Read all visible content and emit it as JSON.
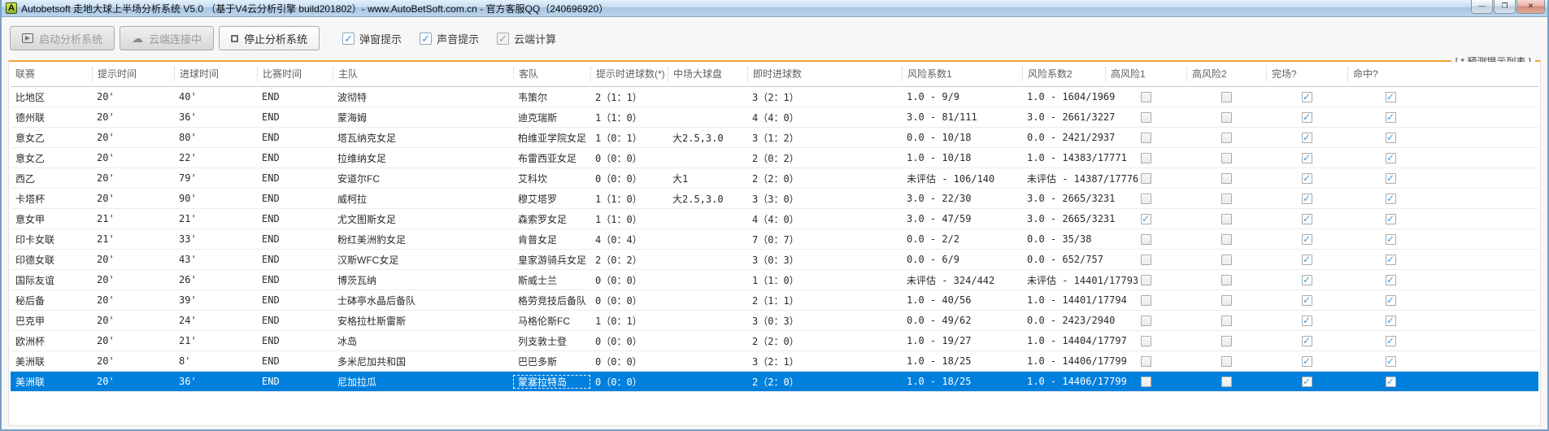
{
  "window": {
    "title": "Autobetsoft 走地大球上半场分析系统 V5.0 （基于V4云分析引擎 build201802）- www.AutoBetSoft.com.cn - 官方客服QQ（240696920）",
    "icon_letter": "A",
    "controls": {
      "minimize": "—",
      "maximize": "❐",
      "close": "✕"
    }
  },
  "toolbar": {
    "start_button": "启动分析系统",
    "cloud_button": "云端连接中",
    "stop_button": "停止分析系统",
    "checkboxes": [
      {
        "label": "弹窗提示",
        "checked": true,
        "enabled": true
      },
      {
        "label": "声音提示",
        "checked": true,
        "enabled": true
      },
      {
        "label": "云端计算",
        "checked": true,
        "enabled": false
      }
    ]
  },
  "panel": {
    "title": "[ * 预测提示列表 ]"
  },
  "colors": {
    "accent_orange": "#eda338",
    "selection_blue": "#0080dd",
    "check_blue": "#4d9bd6"
  },
  "table": {
    "columns": [
      "联赛",
      "提示时间",
      "进球时间",
      "比赛时间",
      "主队",
      "客队",
      "提示时进球数(*)",
      "中场大球盘",
      "即时进球数",
      "风险系数1",
      "风险系数2",
      "高风险1",
      "高风险2",
      "完场?",
      "命中?"
    ],
    "rows": [
      {
        "league": "比地区",
        "hint_time": "20'",
        "goal_time": "40'",
        "match_time": "END",
        "home": "波彻特",
        "away": "韦策尔",
        "hint_score": "2（1：1）",
        "half_line": "",
        "live_score": "3（2：1）",
        "risk1": "1.0 - 9/9",
        "risk2": "1.0 - 1604/1969",
        "high_risk1": false,
        "high_risk2": false,
        "finished": true,
        "hit": true,
        "selected": false
      },
      {
        "league": "德州联",
        "hint_time": "20'",
        "goal_time": "36'",
        "match_time": "END",
        "home": "蒙海姆",
        "away": "迪克瑞斯",
        "hint_score": "1（1：0）",
        "half_line": "",
        "live_score": "4（4：0）",
        "risk1": "3.0 - 81/111",
        "risk2": "3.0 - 2661/3227",
        "high_risk1": false,
        "high_risk2": false,
        "finished": true,
        "hit": true,
        "selected": false
      },
      {
        "league": "意女乙",
        "hint_time": "20'",
        "goal_time": "80'",
        "match_time": "END",
        "home": "塔瓦纳克女足",
        "away": "柏维亚学院女足",
        "hint_score": "1（0：1）",
        "half_line": "大2.5,3.0",
        "live_score": "3（1：2）",
        "risk1": "0.0 - 10/18",
        "risk2": "0.0 - 2421/2937",
        "high_risk1": false,
        "high_risk2": false,
        "finished": true,
        "hit": true,
        "selected": false
      },
      {
        "league": "意女乙",
        "hint_time": "20'",
        "goal_time": "22'",
        "match_time": "END",
        "home": "拉维纳女足",
        "away": "布雷西亚女足",
        "hint_score": "0（0：0）",
        "half_line": "",
        "live_score": "2（0：2）",
        "risk1": "1.0 - 10/18",
        "risk2": "1.0 - 14383/17771",
        "high_risk1": false,
        "high_risk2": false,
        "finished": true,
        "hit": true,
        "selected": false
      },
      {
        "league": "西乙",
        "hint_time": "20'",
        "goal_time": "79'",
        "match_time": "END",
        "home": "安道尔FC",
        "away": "艾科坎",
        "hint_score": "0（0：0）",
        "half_line": "大1",
        "live_score": "2（2：0）",
        "risk1": "未评估 - 106/140",
        "risk2": "未评估 - 14387/17776",
        "high_risk1": false,
        "high_risk2": false,
        "finished": true,
        "hit": true,
        "selected": false
      },
      {
        "league": "卡塔杯",
        "hint_time": "20'",
        "goal_time": "90'",
        "match_time": "END",
        "home": "威柯拉",
        "away": "穆艾塔罗",
        "hint_score": "1（1：0）",
        "half_line": "大2.5,3.0",
        "live_score": "3（3：0）",
        "risk1": "3.0 - 22/30",
        "risk2": "3.0 - 2665/3231",
        "high_risk1": false,
        "high_risk2": false,
        "finished": true,
        "hit": true,
        "selected": false
      },
      {
        "league": "意女甲",
        "hint_time": "21'",
        "goal_time": "21'",
        "match_time": "END",
        "home": "尤文图斯女足",
        "away": "森索罗女足",
        "hint_score": "1（1：0）",
        "half_line": "",
        "live_score": "4（4：0）",
        "risk1": "3.0 - 47/59",
        "risk2": "3.0 - 2665/3231",
        "high_risk1": true,
        "high_risk2": false,
        "finished": true,
        "hit": true,
        "selected": false
      },
      {
        "league": "印卡女联",
        "hint_time": "21'",
        "goal_time": "33'",
        "match_time": "END",
        "home": "粉红美洲豹女足",
        "away": "肯普女足",
        "hint_score": "4（0：4）",
        "half_line": "",
        "live_score": "7（0：7）",
        "risk1": "0.0 - 2/2",
        "risk2": "0.0 - 35/38",
        "high_risk1": false,
        "high_risk2": false,
        "finished": true,
        "hit": true,
        "selected": false
      },
      {
        "league": "印德女联",
        "hint_time": "20'",
        "goal_time": "43'",
        "match_time": "END",
        "home": "汉斯WFC女足",
        "away": "皇家游骑兵女足",
        "hint_score": "2（0：2）",
        "half_line": "",
        "live_score": "3（0：3）",
        "risk1": "0.0 - 6/9",
        "risk2": "0.0 - 652/757",
        "high_risk1": false,
        "high_risk2": false,
        "finished": true,
        "hit": true,
        "selected": false
      },
      {
        "league": "国际友谊",
        "hint_time": "20'",
        "goal_time": "26'",
        "match_time": "END",
        "home": "博茨瓦纳",
        "away": "斯威士兰",
        "hint_score": "0（0：0）",
        "half_line": "",
        "live_score": "1（1：0）",
        "risk1": "未评估 - 324/442",
        "risk2": "未评估 - 14401/17793",
        "high_risk1": false,
        "high_risk2": false,
        "finished": true,
        "hit": true,
        "selected": false
      },
      {
        "league": "秘后备",
        "hint_time": "20'",
        "goal_time": "39'",
        "match_time": "END",
        "home": "士砵亭水晶后备队",
        "away": "格劳竞技后备队",
        "hint_score": "0（0：0）",
        "half_line": "",
        "live_score": "2（1：1）",
        "risk1": "1.0 - 40/56",
        "risk2": "1.0 - 14401/17794",
        "high_risk1": false,
        "high_risk2": false,
        "finished": true,
        "hit": true,
        "selected": false
      },
      {
        "league": "巴克甲",
        "hint_time": "20'",
        "goal_time": "24'",
        "match_time": "END",
        "home": "安格拉杜斯雷斯",
        "away": "马格伦斯FC",
        "hint_score": "1（0：1）",
        "half_line": "",
        "live_score": "3（0：3）",
        "risk1": "0.0 - 49/62",
        "risk2": "0.0 - 2423/2940",
        "high_risk1": false,
        "high_risk2": false,
        "finished": true,
        "hit": true,
        "selected": false
      },
      {
        "league": "欧洲杯",
        "hint_time": "20'",
        "goal_time": "21'",
        "match_time": "END",
        "home": "冰岛",
        "away": "列支敦士登",
        "hint_score": "0（0：0）",
        "half_line": "",
        "live_score": "2（2：0）",
        "risk1": "1.0 - 19/27",
        "risk2": "1.0 - 14404/17797",
        "high_risk1": false,
        "high_risk2": false,
        "finished": true,
        "hit": true,
        "selected": false
      },
      {
        "league": "美洲联",
        "hint_time": "20'",
        "goal_time": "8'",
        "match_time": "END",
        "home": "多米尼加共和国",
        "away": "巴巴多斯",
        "hint_score": "0（0：0）",
        "half_line": "",
        "live_score": "3（2：1）",
        "risk1": "1.0 - 18/25",
        "risk2": "1.0 - 14406/17799",
        "high_risk1": false,
        "high_risk2": false,
        "finished": true,
        "hit": true,
        "selected": false
      },
      {
        "league": "美洲联",
        "hint_time": "20'",
        "goal_time": "36'",
        "match_time": "END",
        "home": "尼加拉瓜",
        "away": "蒙塞拉特岛",
        "hint_score": "0（0：0）",
        "half_line": "",
        "live_score": "2（2：0）",
        "risk1": "1.0 - 18/25",
        "risk2": "1.0 - 14406/17799",
        "high_risk1": false,
        "high_risk2": false,
        "finished": true,
        "hit": true,
        "selected": true
      }
    ]
  }
}
